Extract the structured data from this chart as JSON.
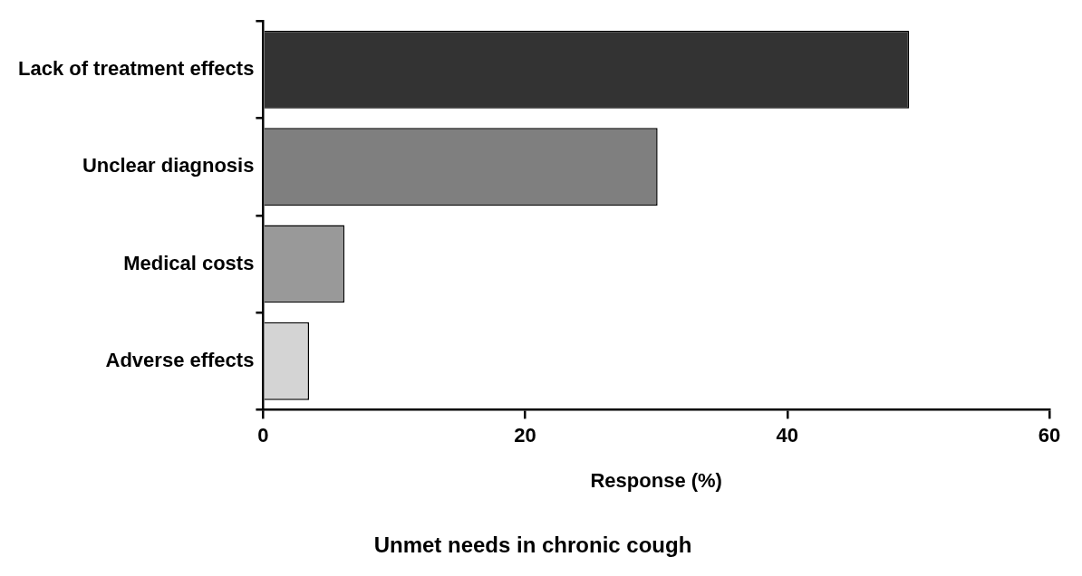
{
  "chart_data": {
    "type": "bar",
    "orientation": "horizontal",
    "title": "Unmet needs in chronic cough",
    "xlabel": "Response (%)",
    "categories": [
      "Lack of treatment effects",
      "Unclear diagnosis",
      "Medical costs",
      "Adverse effects"
    ],
    "values": [
      49.3,
      30.1,
      6.2,
      3.5
    ],
    "colors": [
      "#333333",
      "#7f7f7f",
      "#999999",
      "#d4d4d4"
    ],
    "xlim": [
      0,
      60
    ],
    "xticks": [
      0,
      20,
      40,
      60
    ],
    "grid": false,
    "legend": false
  }
}
